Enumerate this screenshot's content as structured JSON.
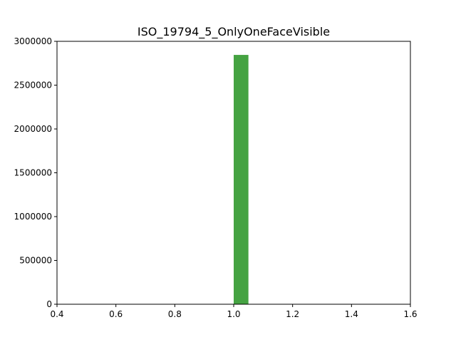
{
  "chart_data": {
    "type": "bar",
    "title": "ISO_19794_5_OnlyOneFaceVisible",
    "xlabel": "",
    "ylabel": "",
    "xlim": [
      0.4,
      1.6
    ],
    "ylim": [
      0,
      3000000
    ],
    "x_ticks": [
      "0.4",
      "0.6",
      "0.8",
      "1.0",
      "1.2",
      "1.4",
      "1.6"
    ],
    "y_ticks": [
      "0",
      "500000",
      "1000000",
      "1500000",
      "2000000",
      "2500000",
      "3000000"
    ],
    "bars": [
      {
        "x_start": 1.0,
        "x_end": 1.05,
        "value": 2845000
      }
    ],
    "bar_color": "#45a342",
    "grid": false,
    "legend": "none"
  }
}
